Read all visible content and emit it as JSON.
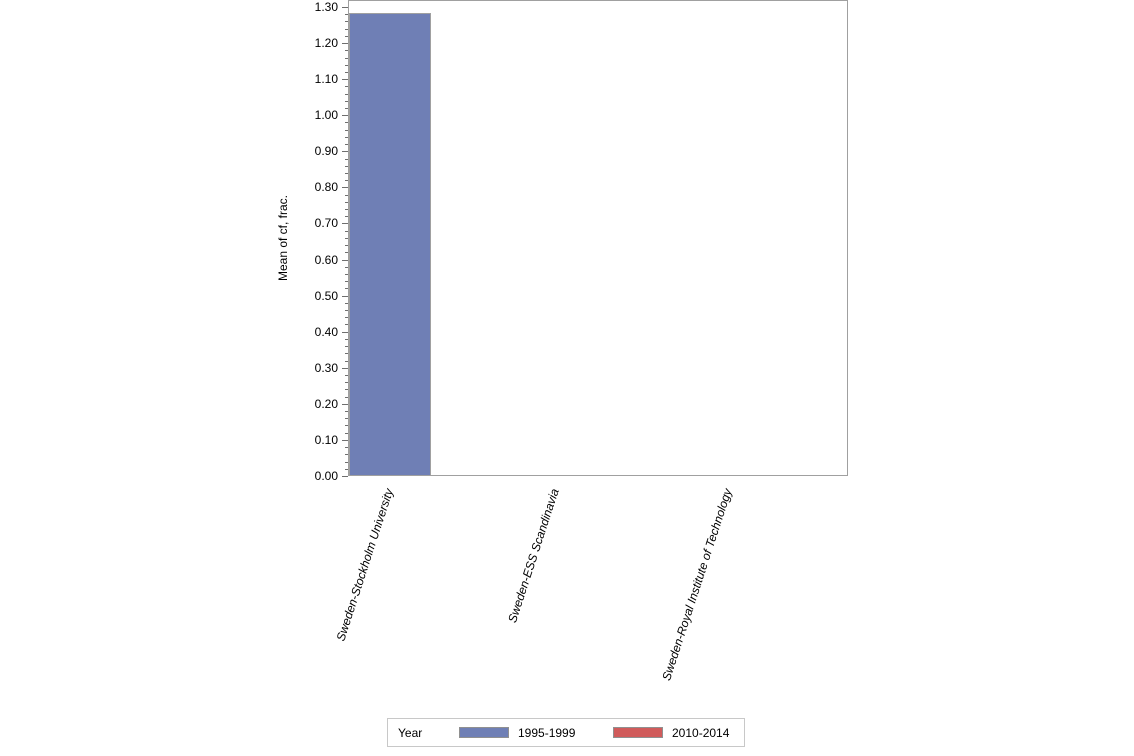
{
  "chart_data": {
    "type": "bar",
    "title": "",
    "xlabel": "",
    "ylabel": "Mean of cf, frac.",
    "ylim": [
      0,
      1.3
    ],
    "yticks": [
      "0.00",
      "0.10",
      "0.20",
      "0.30",
      "0.40",
      "0.50",
      "0.60",
      "0.70",
      "0.80",
      "0.90",
      "1.00",
      "1.10",
      "1.20",
      "1.30"
    ],
    "categories": [
      "Sweden-Stockholm University",
      "Sweden-ESS Scandinavia",
      "Sweden-Royal Institute of Technology"
    ],
    "series": [
      {
        "name": "1995-1999",
        "color": "#6f7fb5",
        "values": [
          1.28,
          0,
          0
        ]
      },
      {
        "name": "2010-2014",
        "color": "#d05b5b",
        "values": [
          0,
          0,
          0
        ]
      }
    ],
    "legend": {
      "title": "Year",
      "position": "bottom"
    },
    "grid": false
  }
}
